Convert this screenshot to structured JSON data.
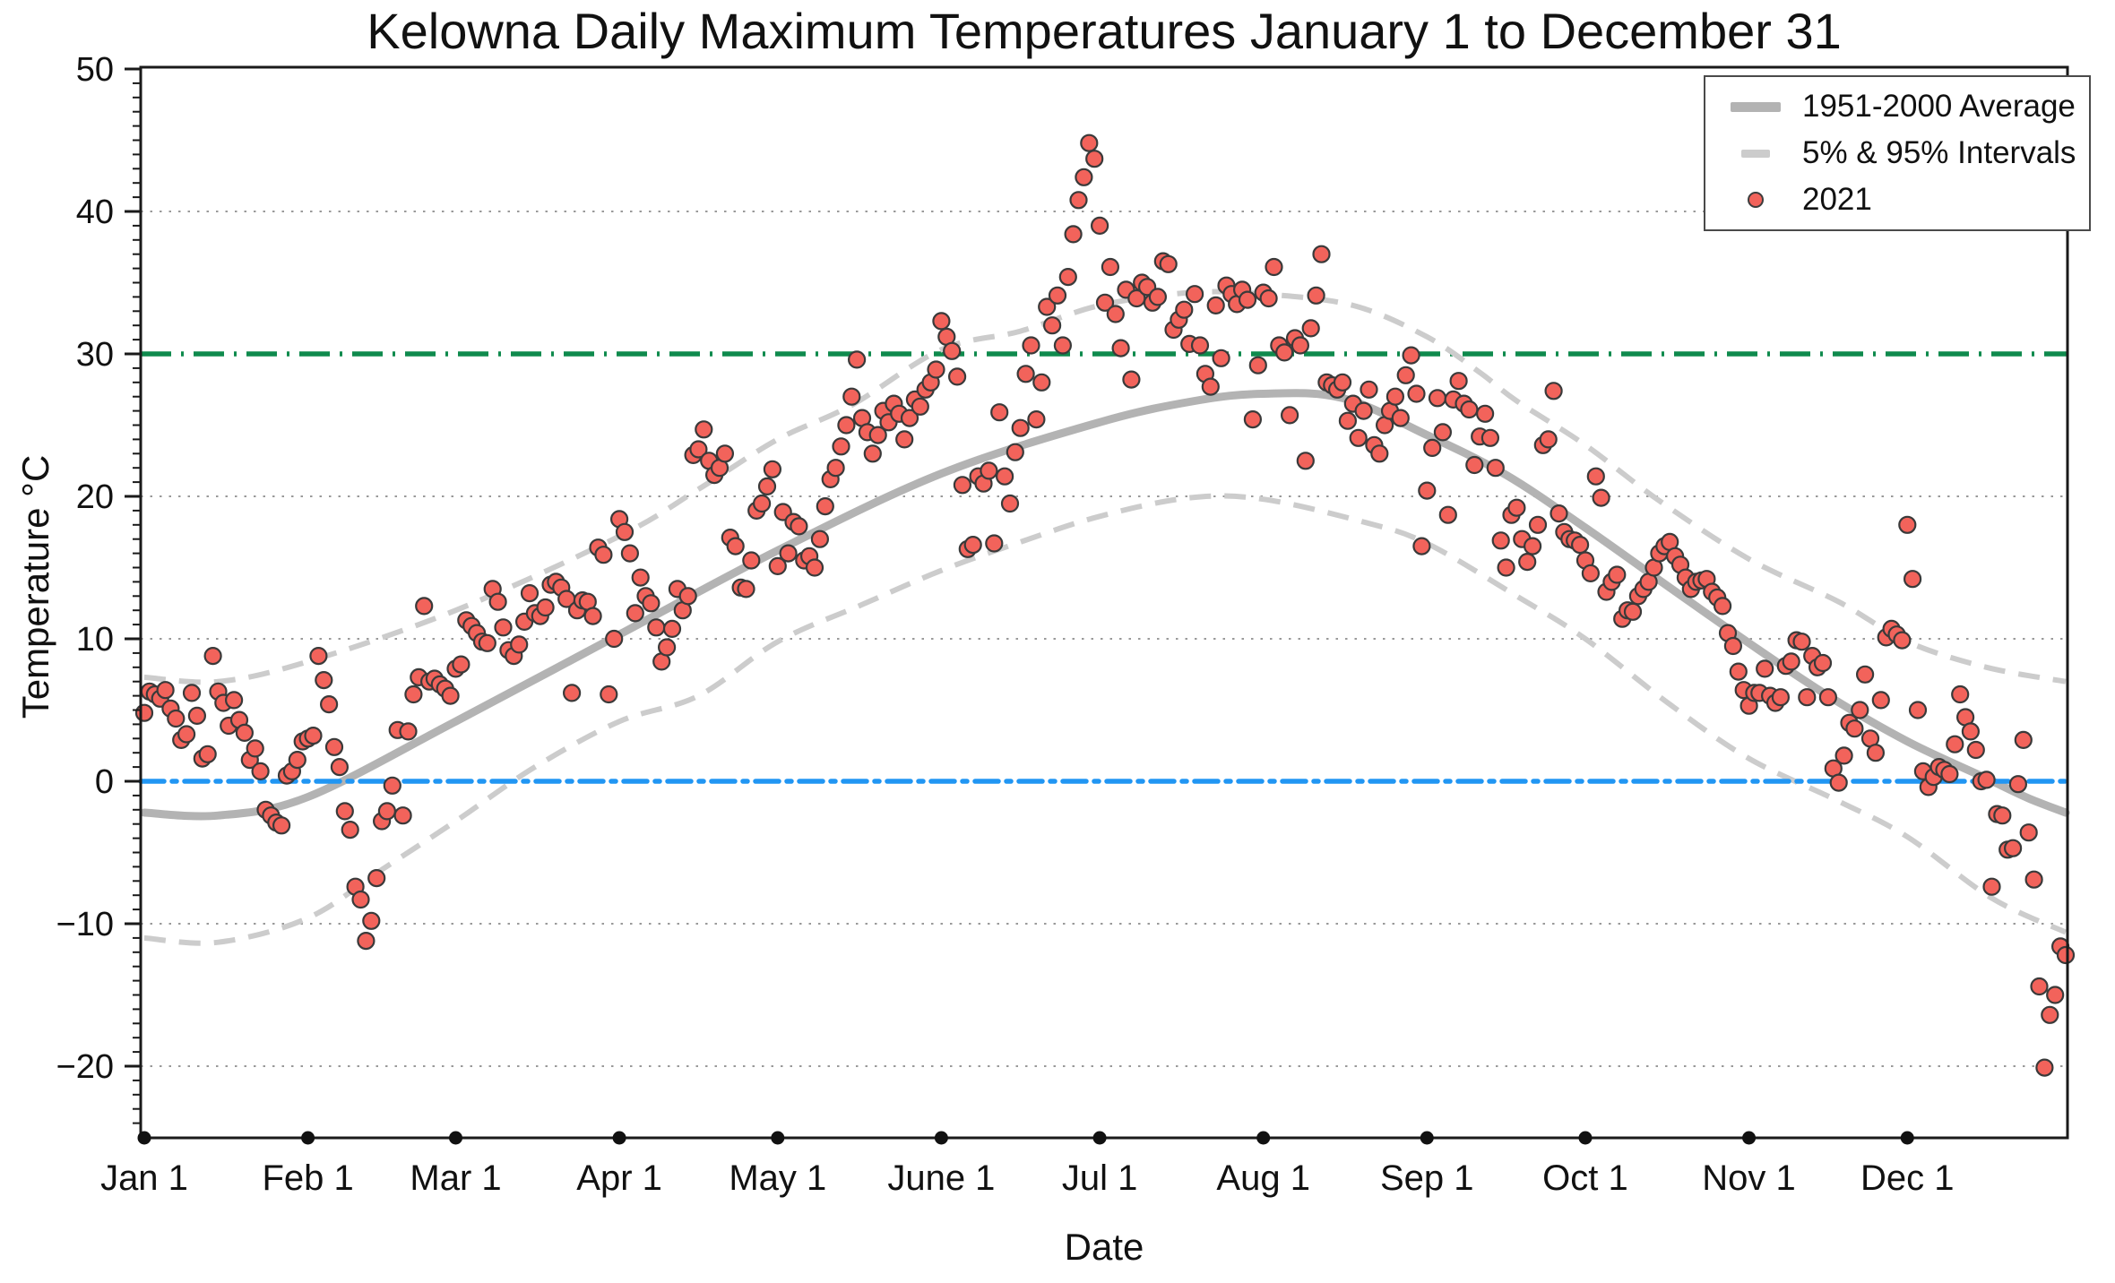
{
  "title": "Kelowna Daily Maximum Temperatures January 1 to December 31",
  "legend": {
    "items": [
      {
        "label": "1951-2000 Average",
        "swatch": "thick-line",
        "color": "#b3b3b3"
      },
      {
        "label": "5% & 95% Intervals",
        "swatch": "dash",
        "color": "#cccccc"
      },
      {
        "label": "2021",
        "swatch": "dot",
        "color": "#f2635b"
      }
    ]
  },
  "colors": {
    "point_fill": "#f2635b",
    "point_stroke": "#3a3a3a",
    "average_line": "#b3b3b3",
    "interval_line": "#cccccc",
    "threshold_line": "#0f8a4d",
    "freezing_line": "#2196f3",
    "gridline": "#999999",
    "frame": "#1a1a1a",
    "text": "#111111"
  },
  "chart_data": {
    "type": "scatter",
    "title": "Kelowna Daily Maximum Temperatures January 1 to December 31",
    "xlabel": "Date",
    "ylabel": "Temperature °C",
    "ylim": [
      -25,
      50
    ],
    "x_unit": "day_of_year",
    "x_range_days": [
      1,
      365
    ],
    "grid": "dotted horizontal at -20,-10,10,20,40",
    "legend_position": "top-right",
    "y_major_ticks": [
      -20,
      -10,
      0,
      10,
      20,
      30,
      40,
      50
    ],
    "y_gridlines": [
      -20,
      -10,
      10,
      20,
      40
    ],
    "month_ticks": [
      {
        "label": "Jan 1",
        "day": 1
      },
      {
        "label": "Feb 1",
        "day": 32
      },
      {
        "label": "Mar 1",
        "day": 60
      },
      {
        "label": "Apr 1",
        "day": 91
      },
      {
        "label": "May 1",
        "day": 121
      },
      {
        "label": "June 1",
        "day": 152
      },
      {
        "label": "Jul 1",
        "day": 182
      },
      {
        "label": "Aug 1",
        "day": 213
      },
      {
        "label": "Sep 1",
        "day": 244
      },
      {
        "label": "Oct 1",
        "day": 274
      },
      {
        "label": "Nov 1",
        "day": 305
      },
      {
        "label": "Dec 1",
        "day": 335
      }
    ],
    "reference_lines": [
      {
        "name": "30C threshold",
        "y": 30,
        "style": "dashed",
        "color": "#0f8a4d"
      },
      {
        "name": "freezing 0C",
        "y": 0,
        "style": "dash-dot",
        "color": "#2196f3"
      }
    ],
    "series": [
      {
        "name": "2021",
        "type": "scatter",
        "color": "#f2635b",
        "x_is_day_of_year_starting": 1,
        "daily_max_c": [
          4.8,
          6.3,
          6.1,
          5.8,
          6.4,
          5.1,
          4.4,
          2.9,
          3.3,
          6.2,
          4.6,
          1.6,
          1.9,
          8.8,
          6.3,
          5.5,
          3.9,
          5.7,
          4.3,
          3.4,
          1.5,
          2.3,
          0.7,
          -2.0,
          -2.4,
          -2.9,
          -3.1,
          0.4,
          0.7,
          1.5,
          2.8,
          3.0,
          3.2,
          8.8,
          7.1,
          5.4,
          2.4,
          1.0,
          -2.1,
          -3.4,
          -7.4,
          -8.3,
          -11.2,
          -9.8,
          -6.8,
          -2.8,
          -2.1,
          -0.3,
          3.6,
          -2.4,
          3.5,
          6.1,
          7.3,
          12.3,
          7.0,
          7.2,
          6.8,
          6.5,
          6.0,
          7.9,
          8.2,
          11.3,
          10.9,
          10.4,
          9.8,
          9.7,
          13.5,
          12.6,
          10.8,
          9.2,
          8.8,
          9.6,
          11.2,
          13.2,
          11.8,
          11.6,
          12.2,
          13.8,
          14.0,
          13.6,
          12.8,
          6.2,
          12.0,
          12.7,
          12.6,
          11.6,
          16.4,
          15.9,
          6.1,
          10.0,
          18.4,
          17.5,
          16.0,
          11.8,
          14.3,
          13.0,
          12.5,
          10.8,
          8.4,
          9.4,
          10.7,
          13.5,
          12.0,
          13.0,
          22.9,
          23.3,
          24.7,
          22.5,
          21.5,
          22.0,
          23.0,
          17.1,
          16.5,
          13.6,
          13.5,
          15.5,
          19.0,
          19.5,
          20.7,
          21.9,
          15.1,
          18.9,
          16.0,
          18.2,
          17.9,
          15.5,
          15.8,
          15.0,
          17.0,
          19.3,
          21.2,
          22.0,
          23.5,
          25.0,
          27.0,
          29.6,
          25.5,
          24.5,
          23.0,
          24.3,
          26.0,
          25.2,
          26.5,
          25.8,
          24.0,
          25.5,
          26.8,
          26.3,
          27.5,
          28.0,
          28.9,
          32.3,
          31.2,
          30.2,
          28.4,
          20.8,
          16.3,
          16.6,
          21.4,
          20.9,
          21.8,
          16.7,
          25.9,
          21.4,
          19.5,
          23.1,
          24.8,
          28.6,
          30.6,
          25.4,
          28.0,
          33.3,
          32.0,
          34.1,
          30.6,
          35.4,
          38.4,
          40.8,
          42.4,
          44.8,
          43.7,
          39.0,
          33.6,
          36.1,
          32.8,
          30.4,
          34.5,
          28.2,
          33.9,
          35.0,
          34.7,
          33.6,
          34.0,
          36.5,
          36.3,
          31.7,
          32.4,
          33.1,
          30.7,
          34.2,
          30.6,
          28.6,
          27.7,
          33.4,
          29.7,
          34.8,
          34.2,
          33.5,
          34.5,
          33.8,
          25.4,
          29.2,
          34.3,
          33.9,
          36.1,
          30.6,
          30.1,
          25.7,
          31.1,
          30.6,
          22.5,
          31.8,
          34.1,
          37.0,
          28.0,
          27.8,
          27.5,
          28.0,
          25.3,
          26.5,
          24.1,
          26.0,
          27.5,
          23.6,
          23.0,
          25.0,
          26.0,
          27.0,
          25.5,
          28.5,
          29.9,
          27.2,
          16.5,
          20.4,
          23.4,
          26.9,
          24.5,
          18.7,
          26.8,
          28.1,
          26.5,
          26.1,
          22.2,
          24.2,
          25.8,
          24.1,
          22.0,
          16.9,
          15.0,
          18.7,
          19.2,
          17.0,
          15.4,
          16.5,
          18.0,
          23.6,
          24.0,
          27.4,
          18.8,
          17.5,
          17.0,
          16.9,
          16.6,
          15.5,
          14.6,
          21.4,
          19.9,
          13.3,
          14.0,
          14.5,
          11.4,
          12.0,
          11.9,
          13.0,
          13.5,
          14.0,
          15.0,
          16.0,
          16.5,
          16.8,
          15.8,
          15.2,
          14.3,
          13.5,
          14.0,
          14.1,
          14.2,
          13.3,
          12.9,
          12.3,
          10.4,
          9.5,
          7.7,
          6.4,
          5.3,
          6.2,
          6.2,
          7.9,
          6.0,
          5.5,
          5.9,
          8.1,
          8.4,
          9.9,
          9.8,
          5.9,
          8.8,
          8.0,
          8.3,
          5.9,
          0.9,
          -0.1,
          1.8,
          4.1,
          3.7,
          5.0,
          7.5,
          3.0,
          2.0,
          5.7,
          10.1,
          10.7,
          10.3,
          9.9,
          18.0,
          14.2,
          5.0,
          0.7,
          -0.4,
          0.3,
          1.0,
          0.8,
          0.5,
          2.6,
          6.1,
          4.5,
          3.5,
          2.2,
          0.0,
          0.1,
          -7.4,
          -2.3,
          -2.4,
          -4.8,
          -4.7,
          -0.2,
          2.9,
          -3.6,
          -6.9,
          -14.4,
          -20.1,
          -16.4,
          -15.0,
          -11.6,
          -12.2
        ]
      },
      {
        "name": "1951-2000 Average",
        "type": "line",
        "color": "#b3b3b3",
        "control_points_day_temp": [
          [
            1,
            -2.2
          ],
          [
            15,
            -2.4
          ],
          [
            32,
            -1.1
          ],
          [
            60,
            4.2
          ],
          [
            91,
            10.3
          ],
          [
            121,
            16.2
          ],
          [
            152,
            21.6
          ],
          [
            182,
            25.2
          ],
          [
            200,
            26.7
          ],
          [
            213,
            27.2
          ],
          [
            228,
            26.9
          ],
          [
            244,
            24.3
          ],
          [
            259,
            21.5
          ],
          [
            274,
            17.8
          ],
          [
            290,
            13.6
          ],
          [
            305,
            9.7
          ],
          [
            320,
            6.0
          ],
          [
            335,
            2.8
          ],
          [
            350,
            0.2
          ],
          [
            358,
            -1.2
          ],
          [
            365,
            -2.2
          ]
        ]
      },
      {
        "name": "95% Interval",
        "type": "dashed-line",
        "color": "#cccccc",
        "control_points_day_temp": [
          [
            1,
            7.3
          ],
          [
            15,
            7.0
          ],
          [
            32,
            8.4
          ],
          [
            60,
            12.0
          ],
          [
            91,
            17.2
          ],
          [
            106,
            20.5
          ],
          [
            121,
            24.0
          ],
          [
            135,
            26.4
          ],
          [
            152,
            30.3
          ],
          [
            167,
            31.6
          ],
          [
            182,
            33.4
          ],
          [
            199,
            34.3
          ],
          [
            213,
            34.2
          ],
          [
            230,
            33.4
          ],
          [
            244,
            31.2
          ],
          [
            254,
            28.7
          ],
          [
            261,
            26.7
          ],
          [
            274,
            23.6
          ],
          [
            288,
            19.7
          ],
          [
            305,
            15.6
          ],
          [
            322,
            12.6
          ],
          [
            335,
            9.8
          ],
          [
            350,
            8.0
          ],
          [
            365,
            7.0
          ]
        ]
      },
      {
        "name": "5% Interval",
        "type": "dashed-line",
        "color": "#cccccc",
        "control_points_day_temp": [
          [
            1,
            -11.0
          ],
          [
            15,
            -11.3
          ],
          [
            32,
            -9.6
          ],
          [
            46,
            -6.2
          ],
          [
            60,
            -2.8
          ],
          [
            75,
            1.0
          ],
          [
            91,
            4.2
          ],
          [
            106,
            6.0
          ],
          [
            121,
            9.8
          ],
          [
            137,
            12.4
          ],
          [
            152,
            14.8
          ],
          [
            167,
            16.8
          ],
          [
            182,
            18.6
          ],
          [
            199,
            19.9
          ],
          [
            213,
            19.8
          ],
          [
            232,
            18.2
          ],
          [
            244,
            16.7
          ],
          [
            261,
            13.0
          ],
          [
            274,
            10.0
          ],
          [
            290,
            5.4
          ],
          [
            305,
            1.6
          ],
          [
            322,
            -1.4
          ],
          [
            335,
            -3.9
          ],
          [
            351,
            -8.2
          ],
          [
            365,
            -10.6
          ]
        ]
      }
    ]
  }
}
